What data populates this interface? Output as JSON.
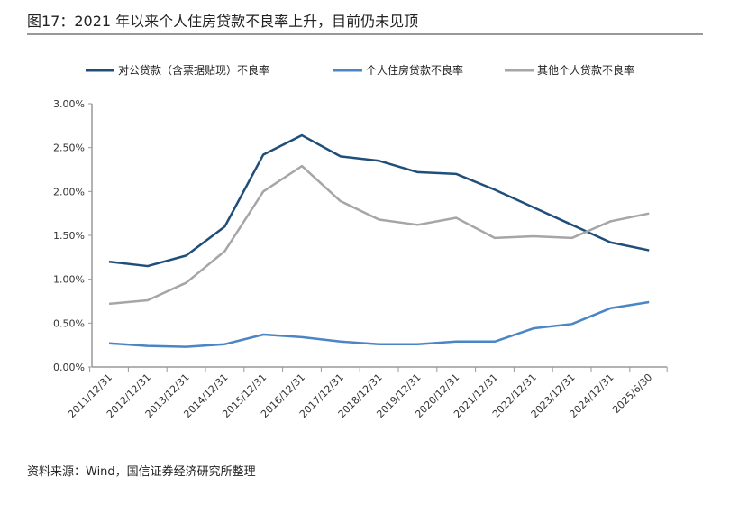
{
  "title": "图17：2021 年以来个人住房贷款不良率上升，目前仍未见顶",
  "source": "资料来源：Wind，国信证券经济研究所整理",
  "chart_data": {
    "type": "line",
    "title": "",
    "xlabel": "",
    "ylabel": "",
    "ylim": [
      0,
      3
    ],
    "yticks": [
      "0.00%",
      "0.50%",
      "1.00%",
      "1.50%",
      "2.00%",
      "2.50%",
      "3.00%"
    ],
    "grid": false,
    "legend": "top",
    "categories": [
      "2011/12/31",
      "2012/12/31",
      "2013/12/31",
      "2014/12/31",
      "2015/12/31",
      "2016/12/31",
      "2017/12/31",
      "2018/12/31",
      "2019/12/31",
      "2020/12/31",
      "2021/12/31",
      "2022/12/31",
      "2023/12/31",
      "2024/12/31",
      "2025/6/30"
    ],
    "series": [
      {
        "name": "对公贷款（含票据贴现）不良率",
        "color": "#1f4e79",
        "values": [
          1.2,
          1.15,
          1.27,
          1.6,
          2.42,
          2.64,
          2.4,
          2.35,
          2.22,
          2.2,
          2.02,
          1.82,
          1.62,
          1.42,
          1.33
        ]
      },
      {
        "name": "个人住房贷款不良率",
        "color": "#4a86c5",
        "values": [
          0.27,
          0.24,
          0.23,
          0.26,
          0.37,
          0.34,
          0.29,
          0.26,
          0.26,
          0.29,
          0.29,
          0.44,
          0.49,
          0.67,
          0.74
        ]
      },
      {
        "name": "其他个人贷款不良率",
        "color": "#a6a6a6",
        "values": [
          0.72,
          0.76,
          0.96,
          1.32,
          2.0,
          2.29,
          1.89,
          1.68,
          1.62,
          1.7,
          1.47,
          1.49,
          1.47,
          1.66,
          1.75
        ]
      }
    ]
  }
}
